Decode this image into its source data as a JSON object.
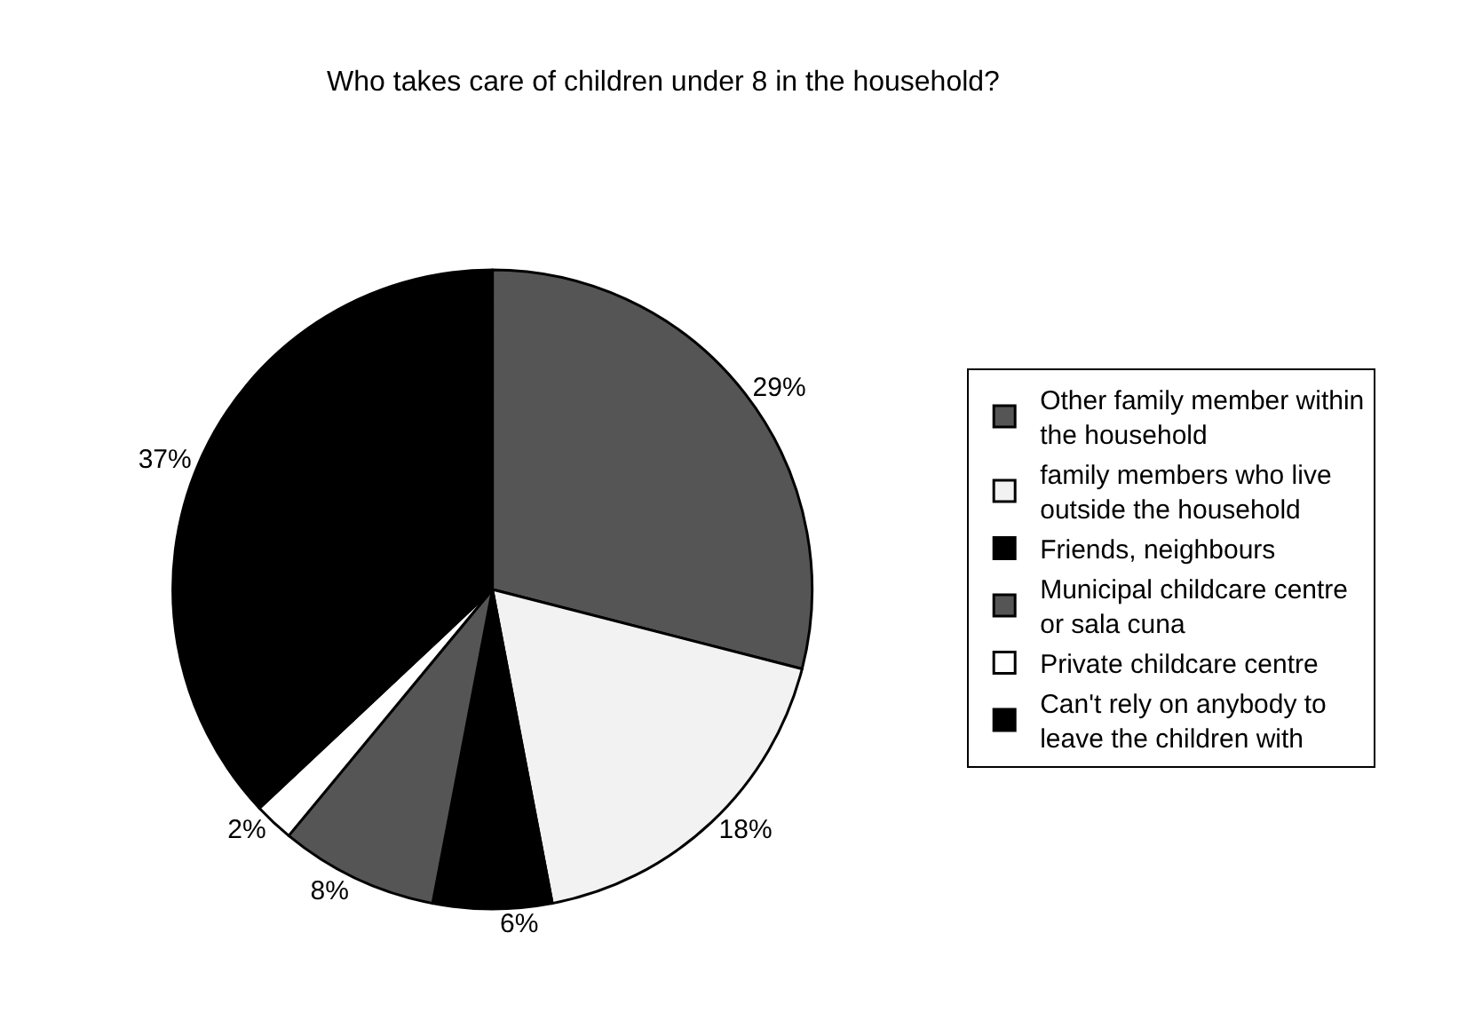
{
  "chart_data": {
    "type": "pie",
    "title": "Who takes care of children under 8 in the household?",
    "categories": [
      "Other family member within the household",
      "family members who live outside the household",
      "Friends, neighbours",
      "Municipal childcare centre or sala cuna",
      "Private childcare centre",
      "Can't rely on anybody to leave the children with"
    ],
    "values": [
      29,
      18,
      6,
      8,
      2,
      37
    ],
    "colors": [
      "#555555",
      "#f2f2f2",
      "#000000",
      "#555555",
      "#ffffff",
      "#000000"
    ],
    "value_labels": [
      "29%",
      "18%",
      "6%",
      "8%",
      "2%",
      "37%"
    ],
    "legend": "right"
  }
}
